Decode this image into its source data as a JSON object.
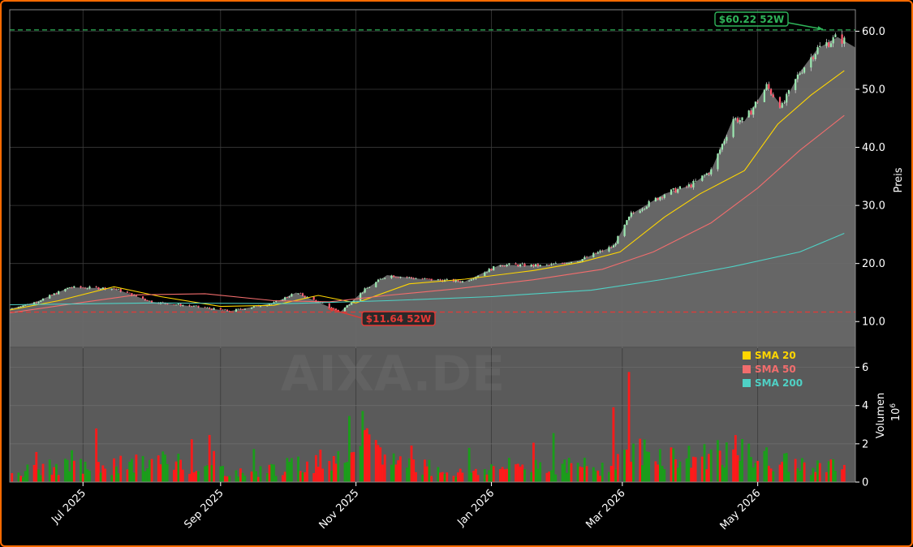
{
  "chart_data": [
    {
      "type": "candlestick",
      "panel": "price",
      "ylabel": "Preis",
      "ylim": [
        5.7,
        63.7
      ],
      "yticks": [
        "10.0",
        "20.0",
        "30.0",
        "40.0",
        "50.0",
        "60.0"
      ],
      "xlim": [
        "2025-05-29",
        "2026-06-14"
      ],
      "xticks": [
        {
          "date": "2025-07-01",
          "label": "Jul 2025"
        },
        {
          "date": "2025-09-01",
          "label": "Sep 2025"
        },
        {
          "date": "2025-11-01",
          "label": "Nov 2025"
        },
        {
          "date": "2026-01-01",
          "label": "Jan 2026"
        },
        {
          "date": "2026-03-01",
          "label": "Mar 2026"
        },
        {
          "date": "2026-05-01",
          "label": "May 2026"
        }
      ],
      "grid": true,
      "watermark": "AIXA.DE",
      "annotations": [
        {
          "text": "$60.22 52W",
          "value": 60.22,
          "color": "#2fb55a"
        },
        {
          "text": "$11.64 52W",
          "value": 11.64,
          "color": "#e53935"
        }
      ],
      "price_path": [
        {
          "date": "2025-05-29",
          "close": 12.2
        },
        {
          "date": "2025-06-10",
          "close": 13.4
        },
        {
          "date": "2025-06-25",
          "close": 15.9
        },
        {
          "date": "2025-07-15",
          "close": 15.7
        },
        {
          "date": "2025-08-01",
          "close": 13.4
        },
        {
          "date": "2025-08-20",
          "close": 12.6
        },
        {
          "date": "2025-09-05",
          "close": 11.8
        },
        {
          "date": "2025-09-25",
          "close": 13.2
        },
        {
          "date": "2025-10-05",
          "close": 15.0
        },
        {
          "date": "2025-10-20",
          "close": 12.5
        },
        {
          "date": "2025-10-25",
          "close": 11.7
        },
        {
          "date": "2025-11-05",
          "close": 15.5
        },
        {
          "date": "2025-11-15",
          "close": 18.0
        },
        {
          "date": "2025-12-01",
          "close": 17.3
        },
        {
          "date": "2025-12-20",
          "close": 16.9
        },
        {
          "date": "2026-01-05",
          "close": 19.8
        },
        {
          "date": "2026-01-25",
          "close": 19.6
        },
        {
          "date": "2026-02-10",
          "close": 20.6
        },
        {
          "date": "2026-02-25",
          "close": 23.0
        },
        {
          "date": "2026-03-05",
          "close": 28.5
        },
        {
          "date": "2026-03-20",
          "close": 32.0
        },
        {
          "date": "2026-04-01",
          "close": 33.5
        },
        {
          "date": "2026-04-10",
          "close": 36.0
        },
        {
          "date": "2026-04-20",
          "close": 45.0
        },
        {
          "date": "2026-04-25",
          "close": 44.5
        },
        {
          "date": "2026-05-05",
          "close": 50.5
        },
        {
          "date": "2026-05-12",
          "close": 47.0
        },
        {
          "date": "2026-05-20",
          "close": 53.0
        },
        {
          "date": "2026-05-28",
          "close": 57.0
        },
        {
          "date": "2026-06-06",
          "close": 59.0
        },
        {
          "date": "2026-06-14",
          "close": 57.2
        }
      ],
      "series": [
        {
          "name": "SMA 20",
          "color": "#ffd600",
          "points": [
            {
              "date": "2025-05-29",
              "close": 12.0
            },
            {
              "date": "2025-06-20",
              "close": 13.6
            },
            {
              "date": "2025-07-15",
              "close": 16.0
            },
            {
              "date": "2025-08-05",
              "close": 14.3
            },
            {
              "date": "2025-09-01",
              "close": 12.6
            },
            {
              "date": "2025-09-25",
              "close": 12.8
            },
            {
              "date": "2025-10-15",
              "close": 14.5
            },
            {
              "date": "2025-11-01",
              "close": 13.2
            },
            {
              "date": "2025-11-25",
              "close": 16.5
            },
            {
              "date": "2025-12-20",
              "close": 17.3
            },
            {
              "date": "2026-01-20",
              "close": 18.8
            },
            {
              "date": "2026-02-10",
              "close": 20.2
            },
            {
              "date": "2026-02-28",
              "close": 22.0
            },
            {
              "date": "2026-03-20",
              "close": 28.0
            },
            {
              "date": "2026-04-05",
              "close": 32.0
            },
            {
              "date": "2026-04-25",
              "close": 36.0
            },
            {
              "date": "2026-05-10",
              "close": 44.0
            },
            {
              "date": "2026-05-25",
              "close": 49.0
            },
            {
              "date": "2026-06-09",
              "close": 53.2
            }
          ]
        },
        {
          "name": "SMA 50",
          "color": "#f26d6d",
          "points": [
            {
              "date": "2025-05-29",
              "close": 11.5
            },
            {
              "date": "2025-06-25",
              "close": 13.0
            },
            {
              "date": "2025-07-25",
              "close": 14.6
            },
            {
              "date": "2025-08-25",
              "close": 14.8
            },
            {
              "date": "2025-09-25",
              "close": 13.6
            },
            {
              "date": "2025-10-20",
              "close": 13.4
            },
            {
              "date": "2025-11-15",
              "close": 14.5
            },
            {
              "date": "2025-12-15",
              "close": 15.6
            },
            {
              "date": "2026-01-20",
              "close": 17.2
            },
            {
              "date": "2026-02-20",
              "close": 19.0
            },
            {
              "date": "2026-03-15",
              "close": 22.0
            },
            {
              "date": "2026-04-10",
              "close": 27.0
            },
            {
              "date": "2026-05-01",
              "close": 33.0
            },
            {
              "date": "2026-05-20",
              "close": 39.5
            },
            {
              "date": "2026-06-09",
              "close": 45.5
            }
          ]
        },
        {
          "name": "SMA 200",
          "color": "#4fd1c5",
          "points": [
            {
              "date": "2025-05-29",
              "close": 12.9
            },
            {
              "date": "2025-08-01",
              "close": 13.2
            },
            {
              "date": "2025-10-01",
              "close": 13.1
            },
            {
              "date": "2025-11-15",
              "close": 13.6
            },
            {
              "date": "2026-01-01",
              "close": 14.3
            },
            {
              "date": "2026-02-15",
              "close": 15.4
            },
            {
              "date": "2026-03-20",
              "close": 17.3
            },
            {
              "date": "2026-04-20",
              "close": 19.5
            },
            {
              "date": "2026-05-20",
              "close": 22.0
            },
            {
              "date": "2026-06-09",
              "close": 25.2
            }
          ]
        }
      ],
      "legend_position": "top-right"
    },
    {
      "type": "bar",
      "panel": "volume",
      "ylabel": "Volumen",
      "yscale_label": "10^6",
      "ylim": [
        0,
        7
      ],
      "yticks": [
        "0",
        "2",
        "4",
        "6"
      ],
      "colors": {
        "up": "#1a9e1a",
        "down": "#ff1a1a"
      },
      "volume_path": [
        {
          "date": "2025-05-29",
          "value": 0.5
        },
        {
          "date": "2025-06-15",
          "value": 0.8
        },
        {
          "date": "2025-07-20",
          "value": 0.9
        },
        {
          "date": "2025-08-10",
          "value": 1.2
        },
        {
          "date": "2025-09-10",
          "value": 0.5
        },
        {
          "date": "2025-10-10",
          "value": 1.0
        },
        {
          "date": "2025-10-25",
          "value": 1.5
        },
        {
          "date": "2025-11-01",
          "value": 3.0
        },
        {
          "date": "2025-11-10",
          "value": 1.5
        },
        {
          "date": "2025-12-15",
          "value": 0.5
        },
        {
          "date": "2026-01-20",
          "value": 1.0
        },
        {
          "date": "2026-02-20",
          "value": 0.8
        },
        {
          "date": "2026-03-01",
          "value": 1.8
        },
        {
          "date": "2026-04-01",
          "value": 1.3
        },
        {
          "date": "2026-04-15",
          "value": 1.8
        },
        {
          "date": "2026-05-15",
          "value": 1.0
        },
        {
          "date": "2026-06-09",
          "value": 0.8
        }
      ]
    }
  ]
}
